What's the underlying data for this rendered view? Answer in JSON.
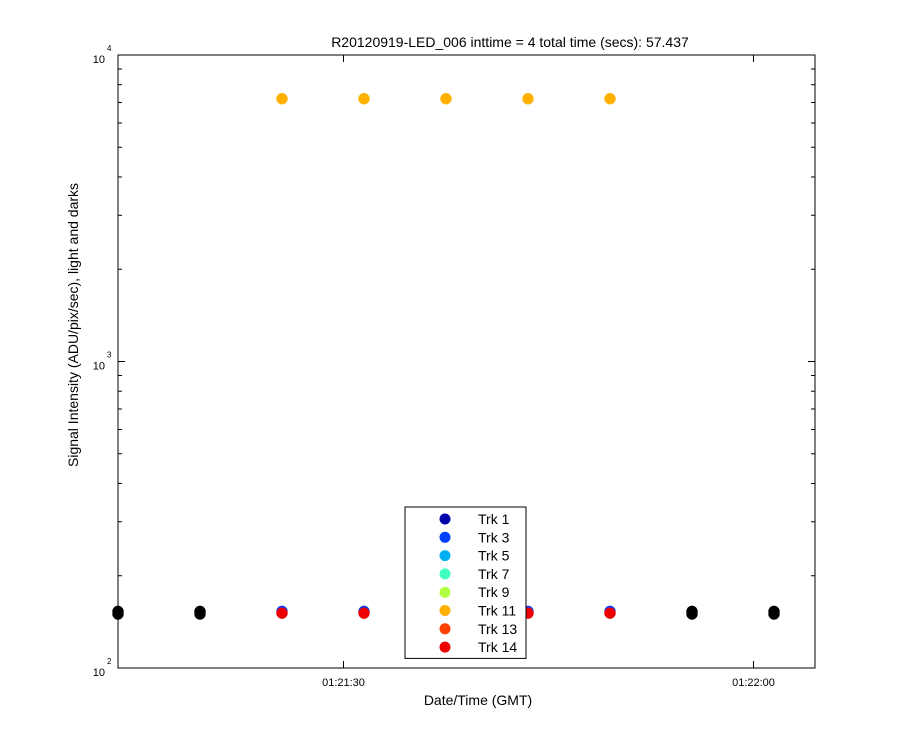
{
  "chart_data": {
    "type": "scatter",
    "title": "R20120919-LED_006 inttime = 4 total time (secs): 57.437",
    "xlabel": "Date/Time (GMT)",
    "ylabel": "Signal Intensity (ADU/pix/sec), light and darks",
    "x_ticks": [
      {
        "t": "01:21:30",
        "label": "01:21:30"
      },
      {
        "t": "01:22:00",
        "label": "01:22:00"
      }
    ],
    "xlim": [
      "01:21:13.5",
      "01:22:04.5"
    ],
    "y_scale": "log",
    "ylim": [
      100,
      10000
    ],
    "y_ticks": [
      {
        "value": 100,
        "base": "10",
        "exp": "2"
      },
      {
        "value": 1000,
        "base": "10",
        "exp": "3"
      },
      {
        "value": 10000,
        "base": "10",
        "exp": "4"
      }
    ],
    "grid": false,
    "legend_position": "bottom-center",
    "series": [
      {
        "name": "Trk 1",
        "color": "#0000AA",
        "legend_only": true,
        "points": []
      },
      {
        "name": "Trk 3",
        "color": "#0040FF",
        "points": [
          {
            "t": "01:21:25.5",
            "v": 153
          },
          {
            "t": "01:21:31.5",
            "v": 153
          },
          {
            "t": "01:21:37.5",
            "v": 153
          },
          {
            "t": "01:21:43.5",
            "v": 153
          },
          {
            "t": "01:21:49.5",
            "v": 153
          }
        ]
      },
      {
        "name": "Trk 5",
        "color": "#00B0F0",
        "legend_only": true,
        "points": []
      },
      {
        "name": "Trk 7",
        "color": "#40FFC0",
        "legend_only": true,
        "points": []
      },
      {
        "name": "Trk 9",
        "color": "#B0FF40",
        "legend_only": true,
        "points": []
      },
      {
        "name": "Trk 11",
        "color": "#FFB000",
        "points": [
          {
            "t": "01:21:25.5",
            "v": 7200
          },
          {
            "t": "01:21:31.5",
            "v": 7200
          },
          {
            "t": "01:21:37.5",
            "v": 7200
          },
          {
            "t": "01:21:43.5",
            "v": 7200
          },
          {
            "t": "01:21:49.5",
            "v": 7200
          }
        ]
      },
      {
        "name": "Trk 13",
        "color": "#FF4000",
        "legend_only": true,
        "points": []
      },
      {
        "name": "Trk 14",
        "color": "#EE0000",
        "points": [
          {
            "t": "01:21:25.5",
            "v": 151
          },
          {
            "t": "01:21:31.5",
            "v": 151
          },
          {
            "t": "01:21:37.5",
            "v": 151
          },
          {
            "t": "01:21:43.5",
            "v": 151
          },
          {
            "t": "01:21:49.5",
            "v": 151
          }
        ]
      },
      {
        "color": "#000000",
        "dark_frames": true,
        "points": [
          {
            "t": "01:21:13.5",
            "v": 153
          },
          {
            "t": "01:21:13.5",
            "v": 150
          },
          {
            "t": "01:21:19.5",
            "v": 153
          },
          {
            "t": "01:21:19.5",
            "v": 150
          },
          {
            "t": "01:21:55.5",
            "v": 153
          },
          {
            "t": "01:21:55.5",
            "v": 150
          },
          {
            "t": "01:22:01.5",
            "v": 153
          },
          {
            "t": "01:22:01.5",
            "v": 150
          }
        ]
      }
    ]
  }
}
